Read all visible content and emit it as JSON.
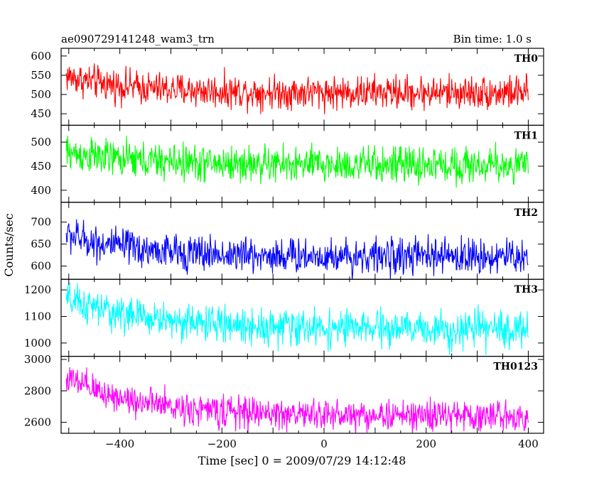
{
  "header": {
    "left": "ae090729141248_wam3_trn",
    "right": "Bin time: 1.0 s"
  },
  "axes": {
    "xlabel": "Time [sec] 0 = 2009/07/29 14:12:48",
    "ylabel": "Counts/sec",
    "xlim": [
      -515,
      430
    ],
    "xticks": [
      -400,
      -200,
      0,
      200,
      400
    ],
    "xtick_labels": [
      "−400",
      "−200",
      "0",
      "200",
      "400"
    ]
  },
  "chart_data": [
    {
      "type": "line",
      "name": "TH0",
      "color": "#ff0000",
      "ylim": [
        420,
        620
      ],
      "yticks": [
        450,
        500,
        550,
        600
      ],
      "x_range": [
        -505,
        400
      ],
      "start_level": 548,
      "end_level": 505,
      "decay_sec": 120,
      "noise_amplitude": 48
    },
    {
      "type": "line",
      "name": "TH1",
      "color": "#00ff00",
      "ylim": [
        375,
        535
      ],
      "yticks": [
        400,
        450,
        500
      ],
      "x_range": [
        -505,
        400
      ],
      "start_level": 478,
      "end_level": 452,
      "decay_sec": 150,
      "noise_amplitude": 42
    },
    {
      "type": "line",
      "name": "TH2",
      "color": "#0000ff",
      "ylim": [
        570,
        745
      ],
      "yticks": [
        600,
        650,
        700
      ],
      "x_range": [
        -505,
        400
      ],
      "start_level": 672,
      "end_level": 622,
      "decay_sec": 130,
      "noise_amplitude": 45
    },
    {
      "type": "line",
      "name": "TH3",
      "color": "#00ffff",
      "ylim": [
        950,
        1240
      ],
      "yticks": [
        1000,
        1100,
        1200
      ],
      "x_range": [
        -505,
        400
      ],
      "start_level": 1160,
      "end_level": 1050,
      "decay_sec": 180,
      "noise_amplitude": 75
    },
    {
      "type": "line",
      "name": "TH0123",
      "color": "#ff00ff",
      "ylim": [
        2530,
        3020
      ],
      "yticks": [
        2600,
        2800,
        3000
      ],
      "x_range": [
        -505,
        400
      ],
      "start_level": 2880,
      "end_level": 2640,
      "decay_sec": 150,
      "noise_amplitude": 110
    }
  ]
}
